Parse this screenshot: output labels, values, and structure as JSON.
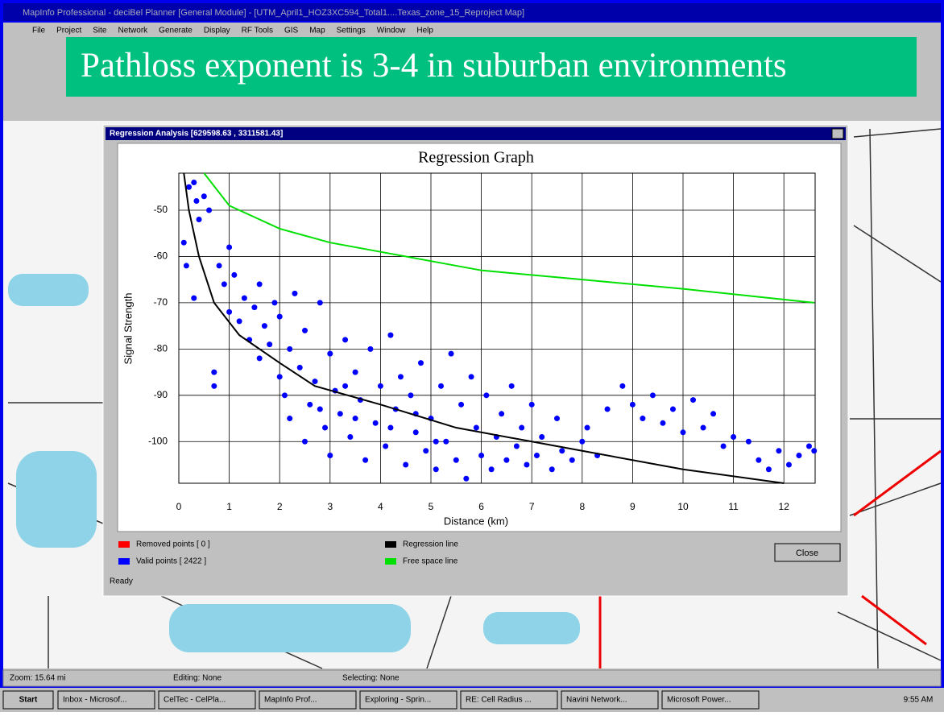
{
  "window": {
    "title": "MapInfo Professional - deciBel Planner [General Module] - [UTM_April1_HOZ3XC594_Total1....Texas_zone_15_Reproject Map]",
    "menu": [
      "File",
      "Project",
      "Site",
      "Network",
      "Generate",
      "Display",
      "RF Tools",
      "GIS",
      "Map",
      "Settings",
      "Window",
      "Help"
    ]
  },
  "banner": "Pathloss exponent is 3-4 in suburban environments",
  "dialog": {
    "title": "Regression Analysis [629598.63 , 3311581.43]",
    "button": "Close",
    "status": "Ready"
  },
  "chart_data": {
    "type": "scatter",
    "title": "Regression Graph",
    "x_label": "Distance (km)",
    "y_label": "Signal Strength",
    "xlim": [
      0,
      12.62
    ],
    "ylim": [
      -109,
      -42
    ],
    "xticks": [
      0,
      1,
      2,
      3,
      4,
      5,
      6,
      7,
      8,
      9,
      10,
      11,
      12
    ],
    "yticks": [
      -50,
      -60,
      -70,
      -80,
      -90,
      -100
    ],
    "grid": true,
    "series": [
      {
        "name": "Removed points [ 0 ]",
        "color": "#ff0000",
        "mode": "points",
        "x": [],
        "y": []
      },
      {
        "name": "Valid points [ 2422 ]",
        "color": "#0000ff",
        "mode": "points",
        "x": [
          0.1,
          0.15,
          0.2,
          0.3,
          0.3,
          0.35,
          0.4,
          0.5,
          0.6,
          0.7,
          0.7,
          0.8,
          0.9,
          1.0,
          1.0,
          1.1,
          1.2,
          1.3,
          1.4,
          1.5,
          1.6,
          1.6,
          1.7,
          1.8,
          1.9,
          2.0,
          2.0,
          2.1,
          2.2,
          2.2,
          2.3,
          2.4,
          2.5,
          2.5,
          2.6,
          2.7,
          2.8,
          2.9,
          3.0,
          3.0,
          3.1,
          3.2,
          3.3,
          3.4,
          3.5,
          3.6,
          3.7,
          3.8,
          3.9,
          4.0,
          4.1,
          4.2,
          4.3,
          4.4,
          4.5,
          4.6,
          4.7,
          4.8,
          4.9,
          5.0,
          5.1,
          5.2,
          5.3,
          5.4,
          5.5,
          5.6,
          5.7,
          5.8,
          5.9,
          6.0,
          6.1,
          6.2,
          6.3,
          6.4,
          6.5,
          6.6,
          6.7,
          6.8,
          6.9,
          7.0,
          7.1,
          7.2,
          7.4,
          7.5,
          7.6,
          7.8,
          8.0,
          8.1,
          8.3,
          8.5,
          8.8,
          9.0,
          9.2,
          9.4,
          9.6,
          9.8,
          10.0,
          10.2,
          10.4,
          10.6,
          10.8,
          11.0,
          11.3,
          11.5,
          11.7,
          11.9,
          12.1,
          12.3,
          12.5,
          12.6,
          3.5,
          4.2,
          5.1,
          2.8,
          3.3,
          4.7
        ],
        "y": [
          -57,
          -62,
          -45,
          -44,
          -69,
          -48,
          -52,
          -47,
          -50,
          -85,
          -88,
          -62,
          -66,
          -58,
          -72,
          -64,
          -74,
          -69,
          -78,
          -71,
          -82,
          -66,
          -75,
          -79,
          -70,
          -73,
          -86,
          -90,
          -80,
          -95,
          -68,
          -84,
          -100,
          -76,
          -92,
          -87,
          -70,
          -97,
          -81,
          -103,
          -89,
          -94,
          -78,
          -99,
          -85,
          -91,
          -104,
          -80,
          -96,
          -88,
          -101,
          -77,
          -93,
          -86,
          -105,
          -90,
          -98,
          -83,
          -102,
          -95,
          -106,
          -88,
          -100,
          -81,
          -104,
          -92,
          -108,
          -86,
          -97,
          -103,
          -90,
          -106,
          -99,
          -94,
          -104,
          -88,
          -101,
          -97,
          -105,
          -92,
          -103,
          -99,
          -106,
          -95,
          -102,
          -104,
          -100,
          -97,
          -103,
          -93,
          -88,
          -92,
          -95,
          -90,
          -96,
          -93,
          -98,
          -91,
          -97,
          -94,
          -101,
          -99,
          -100,
          -104,
          -106,
          -102,
          -105,
          -103,
          -101,
          -102,
          -95,
          -97,
          -100,
          -93,
          -88,
          -94
        ]
      },
      {
        "name": "Regression line",
        "color": "#000000",
        "mode": "line",
        "x": [
          0.1,
          0.2,
          0.4,
          0.7,
          1.2,
          2,
          2.7,
          4,
          5.5,
          7,
          8,
          10,
          12
        ],
        "y": [
          -42,
          -50,
          -60,
          -70,
          -77,
          -83,
          -88,
          -92,
          -97,
          -100,
          -102,
          -106,
          -109
        ]
      },
      {
        "name": "Free space line",
        "color": "#00e000",
        "mode": "line",
        "x": [
          0.5,
          1,
          2,
          3,
          4,
          5,
          6,
          8,
          10,
          12.6
        ],
        "y": [
          -42,
          -49,
          -54,
          -57,
          -59,
          -61,
          -63,
          -65,
          -67,
          -70
        ]
      }
    ]
  },
  "status_bar": {
    "zoom": "Zoom: 15.64 mi",
    "editing": "Editing: None",
    "selecting": "Selecting: None"
  },
  "taskbar": {
    "start": "Start",
    "items": [
      "Inbox - Microsof...",
      "CelTec - CelPla...",
      "MapInfo Prof...",
      "Exploring - Sprin...",
      "RE: Cell Radius ...",
      "Navini Network...",
      "Microsoft Power..."
    ],
    "clock": "9:55 AM"
  }
}
